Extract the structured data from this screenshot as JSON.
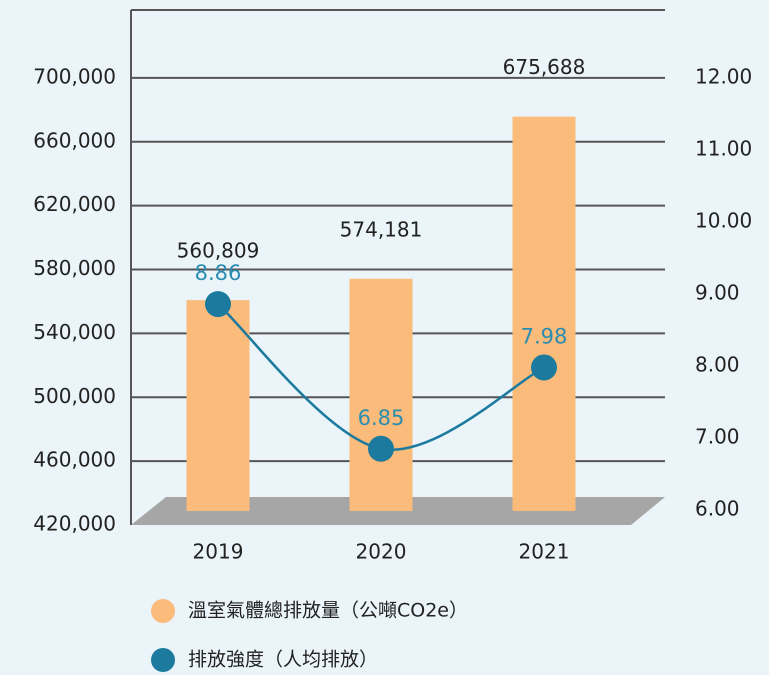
{
  "chart_data": {
    "type": "bar",
    "categories": [
      "2019",
      "2020",
      "2021"
    ],
    "series": [
      {
        "name": "溫室氣體總排放量（公噸CO2e）",
        "color": "#fbbb7b",
        "type": "bar",
        "values": [
          560809,
          574181,
          675688
        ],
        "value_labels": [
          "560,809",
          "574,181",
          "675,688"
        ]
      },
      {
        "name": "排放強度（人均排放）",
        "color": "#1b7a9e",
        "type": "line",
        "axis": "y2",
        "values": [
          8.86,
          6.85,
          7.98
        ]
      }
    ],
    "ylim": [
      420000,
      740000
    ],
    "yticks": [
      {
        "value": 420000,
        "label": "420,000"
      },
      {
        "value": 460000,
        "label": "460,000"
      },
      {
        "value": 500000,
        "label": "500,000"
      },
      {
        "value": 540000,
        "label": "540,000"
      },
      {
        "value": 580000,
        "label": "580,000"
      },
      {
        "value": 620000,
        "label": "620,000"
      },
      {
        "value": 660000,
        "label": "660,000"
      },
      {
        "value": 700000,
        "label": "700,000"
      }
    ],
    "y2lim": [
      6,
      12
    ],
    "y2ticks": [
      {
        "value": 6,
        "label": "6.00"
      },
      {
        "value": 7,
        "label": "7.00"
      },
      {
        "value": 8,
        "label": "8.00"
      },
      {
        "value": 9,
        "label": "9.00"
      },
      {
        "value": 10,
        "label": "10.00"
      },
      {
        "value": 11,
        "label": "11.00"
      },
      {
        "value": 12,
        "label": "12.00"
      }
    ],
    "grid": true,
    "legend": "bottom"
  }
}
